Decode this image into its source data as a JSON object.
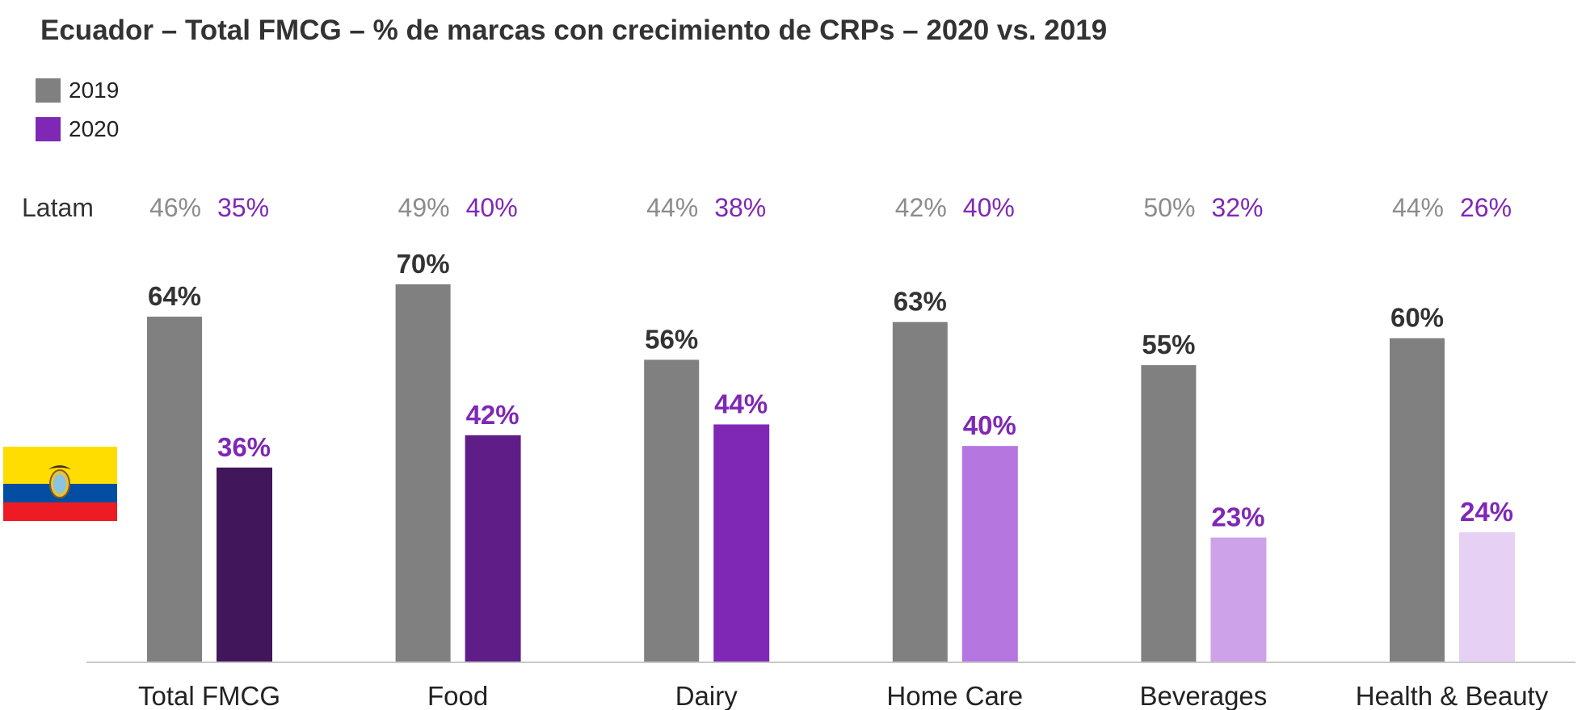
{
  "chart_data": {
    "type": "bar",
    "title": "Ecuador – Total FMCG – % de marcas con crecimiento de CRPs – 2020 vs. 2019",
    "categories": [
      "Total FMCG",
      "Food",
      "Dairy",
      "Home Care",
      "Beverages",
      "Health & Beauty"
    ],
    "series": [
      {
        "name": "2019",
        "values": [
          64,
          70,
          56,
          63,
          55,
          60
        ],
        "color": "#808080"
      },
      {
        "name": "2020",
        "values": [
          36,
          42,
          44,
          40,
          23,
          24
        ],
        "colors": [
          "#41165a",
          "#5f1e87",
          "#7f28b5",
          "#b576e0",
          "#cda2e8",
          "#e6d1f4"
        ],
        "legend_color": "#7f28b5"
      }
    ],
    "value_format": "percent",
    "ylim": [
      0,
      70
    ],
    "grid": false,
    "legend": "top-left",
    "latam": {
      "label": "Latam",
      "2019": [
        46,
        49,
        44,
        42,
        50,
        44
      ],
      "2020": [
        35,
        40,
        38,
        40,
        32,
        26
      ],
      "color_2019": "#8c8c8c",
      "color_2020": "#7f28b5"
    },
    "label_colors": {
      "2019": "#333333",
      "2020": "#7f28b5"
    },
    "flag": "ecuador-flag-icon"
  }
}
